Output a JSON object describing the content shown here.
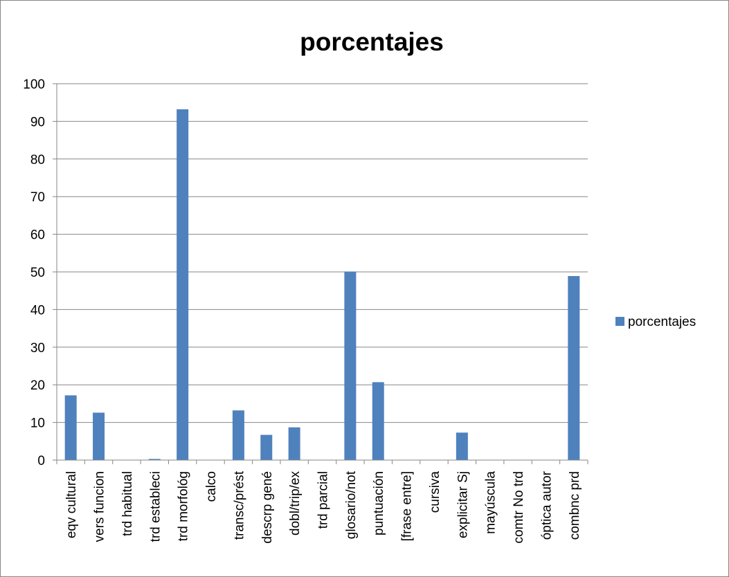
{
  "chart_data": {
    "type": "bar",
    "title": "porcentajes",
    "xlabel": "",
    "ylabel": "",
    "ylim": [
      0,
      100
    ],
    "yticks": [
      0,
      10,
      20,
      30,
      40,
      50,
      60,
      70,
      80,
      90,
      100
    ],
    "grid": "horizontal",
    "legend_position": "right",
    "categories": [
      "eqv cultural",
      "vers funcion",
      "trd habitual",
      "trd estableci",
      "trd morfológ",
      "calco",
      "transc/prést",
      "descrp gené",
      "dobl/trip/ex",
      "trd parcial",
      "glosario/not",
      "puntuación",
      "[frase entre]",
      "cursiva",
      "explicitar Sj",
      "mayúscula",
      "comtr No trd",
      "óptica autor",
      "combnc prd"
    ],
    "series": [
      {
        "name": "porcentajes",
        "color": "#4f81bd",
        "values": [
          17.2,
          12.6,
          0,
          0.3,
          93.2,
          0,
          13.2,
          6.7,
          8.7,
          0,
          50.1,
          20.7,
          0,
          0,
          7.3,
          0,
          0,
          0,
          48.9
        ]
      }
    ]
  }
}
